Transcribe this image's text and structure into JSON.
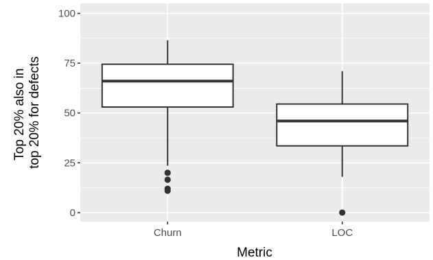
{
  "chart_data": {
    "type": "boxplot",
    "xlabel": "Metric",
    "ylabel": [
      "Top 20% also in",
      "top 20% for defects"
    ],
    "ylim": [
      -4.5,
      105
    ],
    "yticks": [
      0,
      25,
      50,
      75,
      100
    ],
    "grid": true,
    "panel_background": "#ebebeb",
    "grid_color": "#ffffff",
    "box_fill": "#ffffff",
    "box_stroke": "#333333",
    "categories": [
      "Churn",
      "LOC"
    ],
    "boxes": [
      {
        "category": "Churn",
        "whisker_low": 23.5,
        "q1": 53,
        "median": 66,
        "q3": 74.5,
        "whisker_high": 86.5,
        "outliers": [
          20,
          16.5,
          12,
          11
        ]
      },
      {
        "category": "LOC",
        "whisker_low": 18,
        "q1": 33.5,
        "median": 46,
        "q3": 54.5,
        "whisker_high": 71,
        "outliers": [
          0
        ]
      }
    ]
  }
}
